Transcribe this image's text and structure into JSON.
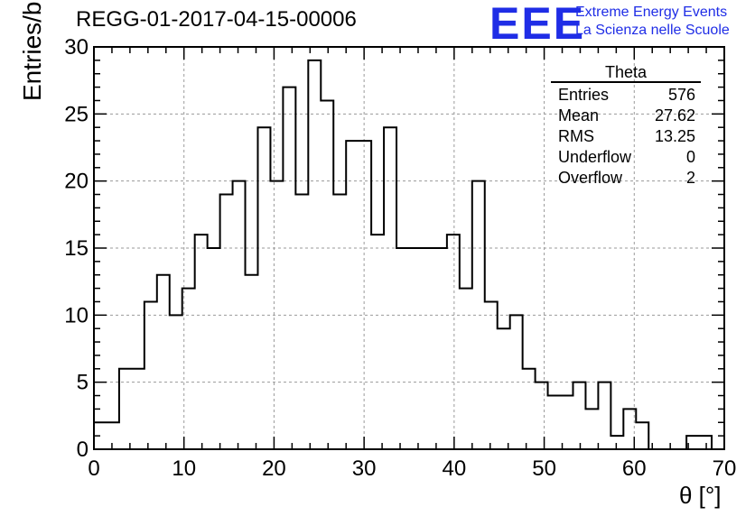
{
  "header": {
    "run_title": "REGG-01-2017-04-15-00006",
    "logo": "EEE",
    "logo_line1": "Extreme Energy Events",
    "logo_line2": "La Scienza nelle Scuole"
  },
  "stats": {
    "title": "Theta",
    "rows": [
      {
        "label": "Entries",
        "value": "576"
      },
      {
        "label": "Mean",
        "value": "27.62"
      },
      {
        "label": "RMS",
        "value": "13.25"
      },
      {
        "label": "Underflow",
        "value": "0"
      },
      {
        "label": "Overflow",
        "value": "2"
      }
    ]
  },
  "chart_data": {
    "type": "bar",
    "title": "REGG-01-2017-04-15-00006",
    "xlabel": "θ [°]",
    "ylabel": "Entries/bin",
    "xlim": [
      0,
      70
    ],
    "ylim": [
      0,
      30
    ],
    "grid": true,
    "bin_width": 1.4,
    "bin_start": 0,
    "values": [
      2,
      2,
      6,
      6,
      11,
      13,
      10,
      12,
      16,
      15,
      19,
      20,
      13,
      24,
      20,
      27,
      19,
      29,
      26,
      19,
      23,
      23,
      16,
      24,
      15,
      15,
      15,
      15,
      16,
      12,
      20,
      11,
      9,
      10,
      6,
      5,
      4,
      4,
      5,
      3,
      5,
      1,
      3,
      2,
      0,
      0,
      0,
      1,
      1,
      0,
      0
    ],
    "x_ticks": [
      0,
      10,
      20,
      30,
      40,
      50,
      60,
      70
    ],
    "y_ticks": [
      0,
      5,
      10,
      15,
      20,
      25,
      30
    ],
    "line_color": "#000000",
    "grid_color": "#9a9a9a"
  }
}
